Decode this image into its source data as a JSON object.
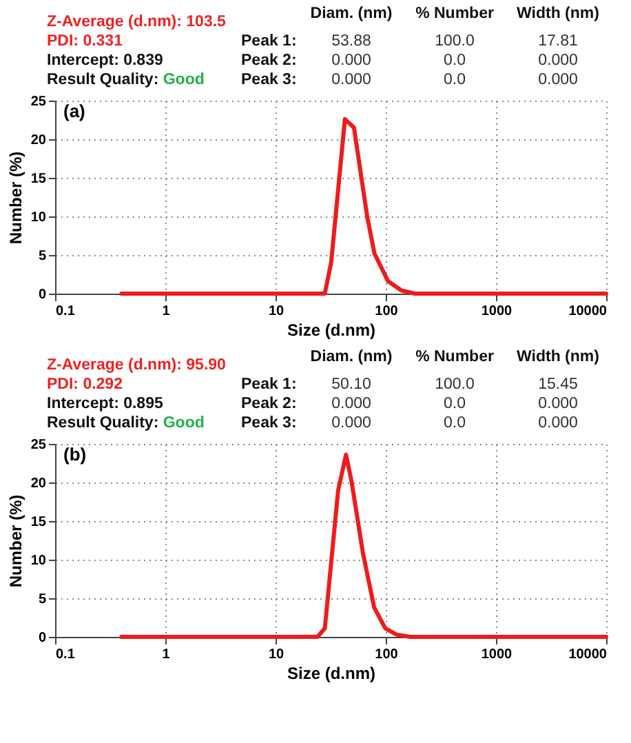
{
  "chart_data": [
    {
      "type": "line",
      "title": "(a)",
      "xlabel": "Size (d.nm)",
      "ylabel": "Number (%)",
      "log": "x",
      "grid": true,
      "annotations": [
        "Z-Average (d.nm): 103.5",
        "PDI: 0.331",
        "Intercept: 0.839",
        "Result Quality:",
        "Good",
        "Diam. (nm)",
        "% Number",
        "Width (nm)",
        "Peak 1:",
        "53.88",
        "100.0",
        "17.81",
        "Peak 2:",
        "0.000",
        "0.0",
        "0.000",
        "Peak 3:",
        "0.000",
        "0.0",
        "0.000"
      ],
      "xlim": [
        0.1,
        10000
      ],
      "xticks": [
        0.1,
        1,
        10,
        100,
        1000,
        10000
      ],
      "ylim": [
        0,
        25
      ],
      "yticks": [
        0,
        5,
        10,
        15,
        20,
        25
      ],
      "x": [
        0.4,
        28,
        32,
        42.6,
        51.5,
        68,
        79,
        105,
        139,
        184,
        10000
      ],
      "series": [
        {
          "color": "#ee1c1c",
          "values": [
            0,
            0,
            4.1,
            22.6,
            21.5,
            9.9,
            5.2,
            1.6,
            0.4,
            0,
            0
          ]
        }
      ]
    },
    {
      "type": "line",
      "title": "(b)",
      "xlabel": "Size (d.nm)",
      "ylabel": "Number (%)",
      "log": "x",
      "grid": true,
      "annotations": [
        "Z-Average (d.nm): 95.90",
        "PDI: 0.292",
        "Intercept: 0.895",
        "Result Quality:",
        "Good",
        "Diam. (nm)",
        "% Number",
        "Width (nm)",
        "Peak 1:",
        "50.10",
        "100.0",
        "15.45",
        "Peak 2:",
        "0.000",
        "0.0",
        "0.000",
        "Peak 3:",
        "0.000",
        "0.0",
        "0.000"
      ],
      "xlim": [
        0.1,
        10000
      ],
      "xticks": [
        0.1,
        1,
        10,
        100,
        1000,
        10000
      ],
      "ylim": [
        0,
        25
      ],
      "yticks": [
        0,
        5,
        10,
        15,
        20,
        25
      ],
      "x": [
        0.4,
        24,
        28,
        37,
        43.6,
        49,
        62,
        78.5,
        99,
        125,
        166,
        10000
      ],
      "series": [
        {
          "color": "#ee1c1c",
          "values": [
            0,
            0,
            1.1,
            19,
            23.6,
            20.1,
            10.9,
            3.8,
            1.1,
            0.3,
            0,
            0
          ]
        }
      ]
    }
  ]
}
